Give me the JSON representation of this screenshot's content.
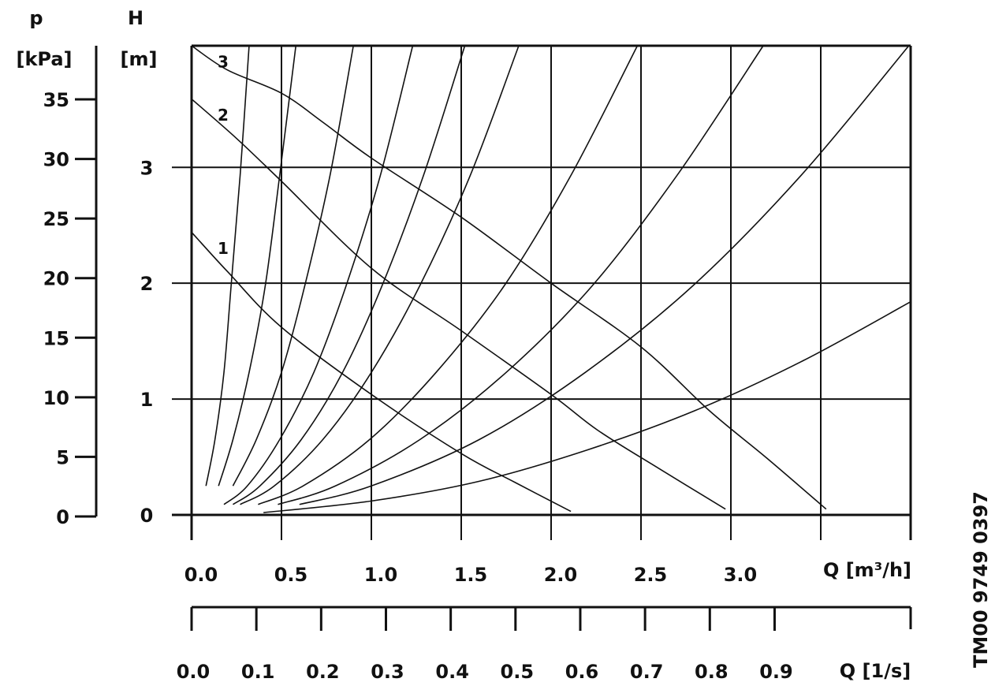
{
  "chart_data": {
    "type": "line",
    "y_label": "H",
    "y_unit": "[m]",
    "y2_label": "p",
    "y2_unit": "[kPa]",
    "x_label": "Q [m³/h]",
    "x2_label": "Q [1/s]",
    "code": "TM00 9749 0397",
    "color": "#111111",
    "xlim": [
      0,
      4.0
    ],
    "xticks": [
      {
        "value": 0,
        "label": "0.0"
      },
      0.5,
      {
        "value": 1,
        "label": "1.0"
      },
      1.5,
      {
        "value": 2,
        "label": "2.0"
      },
      2.5,
      {
        "value": 3,
        "label": "3.0"
      }
    ],
    "xgrid": [
      0.5,
      1,
      1.5,
      2,
      2.5,
      3,
      3.5
    ],
    "x2lim": [
      0,
      1.11
    ],
    "x2ticks": [
      {
        "value": 0,
        "label": "0.0"
      },
      0.1,
      0.2,
      0.3,
      0.4,
      0.5,
      0.6,
      0.7,
      0.8,
      0.9
    ],
    "ylim": [
      0,
      4.05
    ],
    "yticks": [
      0,
      1,
      2,
      3
    ],
    "y2lim": [
      0,
      39.5
    ],
    "y2ticks": [
      0,
      5,
      10,
      15,
      20,
      25,
      30,
      35
    ],
    "series": [
      {
        "name": "3",
        "x": [
          0,
          0.2,
          0.5,
          0.73,
          1.0,
          1.5,
          2.0,
          2.5,
          2.88,
          3.2,
          3.53
        ],
        "values": [
          4.05,
          3.84,
          3.64,
          3.39,
          3.08,
          2.57,
          2.0,
          1.45,
          0.9,
          0.49,
          0.05
        ]
      },
      {
        "name": "2",
        "x": [
          0,
          0.25,
          0.5,
          1.0,
          1.5,
          2.0,
          2.26,
          2.6,
          2.97
        ],
        "values": [
          3.59,
          3.25,
          2.88,
          2.13,
          1.59,
          1.04,
          0.73,
          0.4,
          0.05
        ]
      },
      {
        "name": "1",
        "x": [
          0,
          0.2,
          0.5,
          1.0,
          1.5,
          1.8,
          2.11
        ],
        "values": [
          2.44,
          2.1,
          1.62,
          1.04,
          0.53,
          0.28,
          0.03
        ]
      },
      {
        "x": [
          0.08,
          0.13,
          0.18,
          0.22,
          0.27,
          0.32
        ],
        "values": [
          0.25,
          0.65,
          1.23,
          1.98,
          2.93,
          4.05
        ]
      },
      {
        "x": [
          0.15,
          0.23,
          0.32,
          0.41,
          0.49,
          0.58
        ],
        "values": [
          0.25,
          0.65,
          1.23,
          1.98,
          2.93,
          4.05
        ]
      },
      {
        "x": [
          0.23,
          0.36,
          0.5,
          0.63,
          0.77,
          0.9
        ],
        "values": [
          0.25,
          0.65,
          1.23,
          1.98,
          2.93,
          4.05
        ]
      },
      {
        "x": [
          0.18,
          0.31,
          0.49,
          0.68,
          0.86,
          1.05,
          1.23
        ],
        "values": [
          0.09,
          0.25,
          0.65,
          1.23,
          1.98,
          2.93,
          4.05
        ]
      },
      {
        "x": [
          0.23,
          0.38,
          0.61,
          0.84,
          1.06,
          1.29,
          1.52
        ],
        "values": [
          0.09,
          0.25,
          0.65,
          1.23,
          1.98,
          2.93,
          4.05
        ]
      },
      {
        "x": [
          0.27,
          0.46,
          0.73,
          1.0,
          1.27,
          1.55,
          1.82
        ],
        "values": [
          0.09,
          0.25,
          0.65,
          1.23,
          1.98,
          2.93,
          4.05
        ]
      },
      {
        "x": [
          0.37,
          0.62,
          0.99,
          1.36,
          1.74,
          2.11,
          2.48
        ],
        "values": [
          0.09,
          0.25,
          0.65,
          1.23,
          1.98,
          2.93,
          4.05
        ]
      },
      {
        "x": [
          0.48,
          0.8,
          1.27,
          1.75,
          2.23,
          2.7,
          3.18
        ],
        "values": [
          0.09,
          0.25,
          0.65,
          1.23,
          1.98,
          2.93,
          4.05
        ]
      },
      {
        "x": [
          0.6,
          1.0,
          1.6,
          2.19,
          2.79,
          3.39,
          3.99
        ],
        "values": [
          0.09,
          0.25,
          0.65,
          1.23,
          1.98,
          2.93,
          4.05
        ]
      },
      {
        "x": [
          0.4,
          1.0,
          1.6,
          2.2,
          2.8,
          3.4,
          4.0
        ],
        "values": [
          0.02,
          0.12,
          0.29,
          0.56,
          0.9,
          1.33,
          1.84
        ]
      }
    ]
  }
}
